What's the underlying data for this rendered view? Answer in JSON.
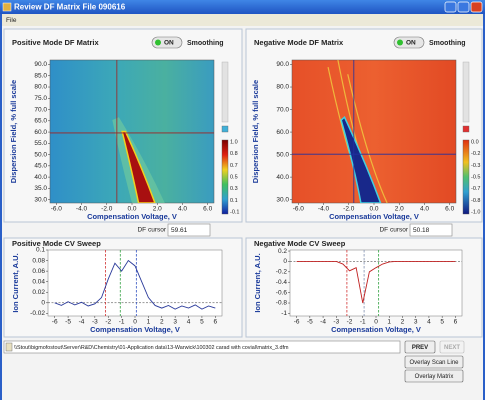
{
  "window": {
    "title": "Review DF Matrix File  090616",
    "menu": [
      "File"
    ]
  },
  "matrices": [
    {
      "title": "Positive Mode DF Matrix",
      "toggle": "ON",
      "toggle_label": "Smoothing",
      "xlabel": "Compensation Voltage, V",
      "ylabel": "Dispersion Field, % full scale",
      "xlim": [
        -6.5,
        6.5
      ],
      "ylim": [
        28.5,
        92
      ],
      "xticks": [
        {
          "value": -6,
          "label": "-6.0"
        },
        {
          "value": -4,
          "label": "-4.0"
        },
        {
          "value": -2,
          "label": "-2.0"
        },
        {
          "value": 0,
          "label": "0.0"
        },
        {
          "value": 2,
          "label": "2.0"
        },
        {
          "value": 4,
          "label": "4.0"
        },
        {
          "value": 6,
          "label": "6.0"
        }
      ],
      "yticks": [
        {
          "value": 90,
          "label": "90.0"
        },
        {
          "value": 85,
          "label": "85.0"
        },
        {
          "value": 80,
          "label": "80.0"
        },
        {
          "value": 75,
          "label": "75.0"
        },
        {
          "value": 70,
          "label": "70.0"
        },
        {
          "value": 65,
          "label": "65.0"
        },
        {
          "value": 60,
          "label": "60.0"
        },
        {
          "value": 55,
          "label": "55.0"
        },
        {
          "value": 50,
          "label": "50.0"
        },
        {
          "value": 45,
          "label": "45.0"
        },
        {
          "value": 40,
          "label": "40.0"
        },
        {
          "value": 35,
          "label": "35.0"
        },
        {
          "value": 30,
          "label": "30.0"
        }
      ],
      "colorbar_labels": [
        "1.0",
        "0.8",
        "0.7",
        "0.5",
        "0.3",
        "0.1",
        "-0.1"
      ],
      "cv_cursor": -1.2,
      "df_cursor_label": "DF cursor",
      "df_cursor": 59.61,
      "cursor_color": "#a02020"
    },
    {
      "title": "Negative Mode DF Matrix",
      "toggle": "ON",
      "toggle_label": "Smoothing",
      "xlabel": "Compensation Voltage, V",
      "ylabel": "Dispersion Field, % full scale",
      "xlim": [
        -6.5,
        6.5
      ],
      "ylim": [
        28.5,
        92
      ],
      "xticks": [
        {
          "value": -6,
          "label": "-6.0"
        },
        {
          "value": -4,
          "label": "-4.0"
        },
        {
          "value": -2,
          "label": "-2.0"
        },
        {
          "value": 0,
          "label": "0.0"
        },
        {
          "value": 2,
          "label": "2.0"
        },
        {
          "value": 4,
          "label": "4.0"
        },
        {
          "value": 6,
          "label": "6.0"
        }
      ],
      "yticks": [
        {
          "value": 90,
          "label": "90.0"
        },
        {
          "value": 80,
          "label": "80.0"
        },
        {
          "value": 70,
          "label": "70.0"
        },
        {
          "value": 60,
          "label": "60.0"
        },
        {
          "value": 50,
          "label": "50.0"
        },
        {
          "value": 40,
          "label": "40.0"
        },
        {
          "value": 30,
          "label": "30.0"
        }
      ],
      "colorbar_labels": [
        "0.0",
        "-0.2",
        "-0.3",
        "-0.5",
        "-0.7",
        "-0.8",
        "-1.0"
      ],
      "cv_cursor": -1.6,
      "df_cursor_label": "DF cursor",
      "df_cursor": 50.18,
      "cursor_color": "#2030a0"
    }
  ],
  "sweeps": [
    {
      "title": "Positive Mode CV Sweep",
      "xlabel": "Compensation Voltage, V",
      "ylabel": "Ion Current, A.U.",
      "color": "#2a3a9a",
      "xlim": [
        -6.5,
        6.5
      ],
      "ylim": [
        -0.025,
        0.1
      ],
      "xticks": [
        -6,
        -5,
        -4,
        -3,
        -2,
        -1,
        0,
        1,
        2,
        3,
        4,
        5,
        6
      ],
      "yticks": [
        0.1,
        0.08,
        0.06,
        0.04,
        0.02,
        0,
        -0.02
      ],
      "x": [
        -6,
        -5.5,
        -5,
        -4.5,
        -4,
        -3.5,
        -3,
        -2.5,
        -2,
        -1.5,
        -1,
        -0.5,
        0,
        0.5,
        1,
        1.5,
        2,
        2.5,
        3,
        3.5,
        4,
        4.5,
        5,
        5.5,
        6
      ],
      "values": [
        0,
        -0.005,
        0.002,
        -0.004,
        0.001,
        -0.006,
        -0.002,
        0.01,
        0.045,
        0.075,
        0.06,
        0.08,
        0.07,
        0.04,
        0.01,
        -0.005,
        -0.01,
        -0.005,
        -0.012,
        -0.006,
        -0.01,
        -0.004,
        -0.012,
        -0.006,
        -0.01
      ],
      "markers": [
        -2.2,
        -1.1,
        0.1
      ],
      "marker_colors": [
        "#d03030",
        "#30a040",
        "#3050c0"
      ]
    },
    {
      "title": "Negative Mode CV Sweep",
      "xlabel": "Compensation Voltage, V",
      "ylabel": "Ion Current, A.U.",
      "color": "#c02020",
      "xlim": [
        -6.5,
        6.5
      ],
      "ylim": [
        -1.05,
        0.22
      ],
      "xticks": [
        -6,
        -5,
        -4,
        -3,
        -2,
        -1,
        0,
        1,
        2,
        3,
        4,
        5,
        6
      ],
      "yticks": [
        0.2,
        0,
        -0.2,
        -0.4,
        -0.6,
        -0.8,
        -1
      ],
      "x": [
        -6,
        -5.5,
        -5,
        -4.5,
        -4,
        -3.5,
        -3,
        -2.5,
        -2,
        -1.5,
        -1,
        -0.5,
        0,
        0.5,
        1,
        1.5,
        2,
        2.5,
        3,
        3.5,
        4,
        4.5,
        5,
        5.5,
        6
      ],
      "values": [
        0,
        0,
        0,
        0,
        0,
        0,
        0,
        -0.05,
        -0.18,
        -0.12,
        -0.8,
        -0.2,
        -0.12,
        -0.05,
        -0.01,
        0,
        0,
        0,
        0,
        0,
        0,
        0,
        0,
        0,
        0
      ],
      "markers": [
        -2.2,
        -0.9,
        0.2
      ],
      "marker_colors": [
        "#d03030",
        "#8090b0",
        "#30a040"
      ]
    }
  ],
  "file_path": "\\\\Stout\\bigmofostout\\Server\\R&D\\Chemistry\\01-Application data\\13-Warwick\\100302 carad with covial\\matrix_3.dfm",
  "buttons": [
    "PREV",
    "NEXT",
    "Overlay Scan Line",
    "Overlay Matrix"
  ]
}
